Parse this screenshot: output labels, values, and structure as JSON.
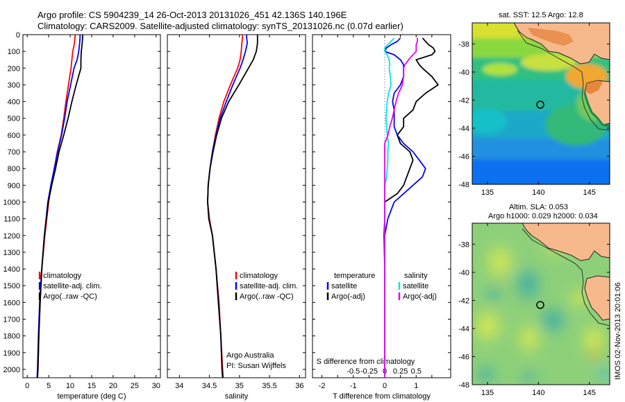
{
  "title": {
    "line1": "Argo profile: CS 5904239_14 26-Oct-2013 20131026_451 42.136S 140.196E",
    "line2": "Climatology: CARS2009. Satellite-adjusted climatology: synTS_20131026.nc (0.07d earlier)"
  },
  "side_label": "IMOS 02-Nov-2013 20:01:06",
  "colors": {
    "climatology": "#ff0000",
    "satellite": "#0000ff",
    "argo": "#000000",
    "sal_satellite": "#00e5e5",
    "sal_argo": "#e600e6"
  },
  "chart_data": [
    {
      "type": "line",
      "name": "temperature-profile",
      "xlabel": "temperature (deg C)",
      "ylabel": "",
      "xlim": [
        -1,
        31
      ],
      "ylim": [
        2050,
        0
      ],
      "xticks": [
        0,
        5,
        10,
        15,
        20,
        25,
        30
      ],
      "yticks": [
        0,
        100,
        200,
        300,
        400,
        500,
        600,
        700,
        800,
        900,
        1000,
        1100,
        1200,
        1300,
        1400,
        1500,
        1600,
        1700,
        1800,
        1900,
        2000
      ],
      "legend": [
        "climatology",
        "satellite-adj. clim.",
        "Argo(..raw -QC)"
      ],
      "legend_position": "lower-middle",
      "depth": [
        0,
        20,
        50,
        100,
        150,
        200,
        300,
        400,
        500,
        600,
        700,
        800,
        900,
        1000,
        1200,
        1400,
        1600,
        1800,
        2000,
        2050
      ],
      "series": [
        {
          "name": "climatology",
          "color": "#ff0000",
          "x": [
            11.2,
            11.1,
            11.0,
            10.6,
            10.4,
            10.2,
            9.6,
            9.0,
            8.5,
            7.9,
            7.0,
            6.3,
            5.6,
            5.0,
            4.1,
            3.4,
            3.0,
            2.7,
            2.5,
            2.4
          ]
        },
        {
          "name": "satellite-adj. clim.",
          "color": "#0000ff",
          "x": [
            12.3,
            12.3,
            12.2,
            12.0,
            11.6,
            10.9,
            10.1,
            9.3,
            8.7,
            8.0,
            7.1,
            6.3,
            5.5,
            4.8,
            4.0,
            3.4,
            2.9,
            2.6,
            2.4,
            2.3
          ]
        },
        {
          "name": "Argo(..raw -QC)",
          "color": "#000000",
          "x": [
            12.9,
            12.9,
            12.8,
            12.6,
            12.5,
            12.5,
            11.4,
            10.4,
            9.5,
            8.5,
            7.4,
            6.6,
            5.7,
            4.9,
            4.0,
            3.4,
            3.0,
            2.7,
            2.5,
            2.4
          ]
        }
      ]
    },
    {
      "type": "line",
      "name": "salinity-profile",
      "xlabel": "salinity",
      "xlim": [
        33.8,
        36.1
      ],
      "ylim": [
        2050,
        0
      ],
      "xticks": [
        34,
        34.5,
        35,
        35.5,
        36
      ],
      "legend": [
        "climatology",
        "satellite-adj. clim.",
        "Argo(..raw -QC)"
      ],
      "legend_position": "lower-right",
      "annotation": [
        "Argo Australia",
        "PI: Susan Wijffels"
      ],
      "depth": [
        0,
        20,
        50,
        100,
        150,
        200,
        300,
        400,
        500,
        600,
        700,
        800,
        900,
        1000,
        1100,
        1200,
        1400,
        1600,
        1800,
        2000,
        2050
      ],
      "series": [
        {
          "name": "climatology",
          "color": "#ff0000",
          "x": [
            35.05,
            35.05,
            35.04,
            35.03,
            35.01,
            34.97,
            34.85,
            34.74,
            34.66,
            34.6,
            34.55,
            34.51,
            34.48,
            34.47,
            34.5,
            34.55,
            34.61,
            34.66,
            34.69,
            34.72,
            34.73
          ]
        },
        {
          "name": "satellite-adj. clim.",
          "color": "#0000ff",
          "x": [
            35.12,
            35.12,
            35.13,
            35.1,
            35.06,
            35.01,
            34.89,
            34.78,
            34.68,
            34.61,
            34.55,
            34.51,
            34.48,
            34.47,
            34.49,
            34.55,
            34.61,
            34.65,
            34.69,
            34.71,
            34.72
          ]
        },
        {
          "name": "Argo(..raw -QC)",
          "color": "#000000",
          "x": [
            35.3,
            35.3,
            35.3,
            35.28,
            35.23,
            35.15,
            34.99,
            34.82,
            34.7,
            34.62,
            34.56,
            34.51,
            34.48,
            34.47,
            34.49,
            34.55,
            34.61,
            34.65,
            34.69,
            34.71,
            34.72
          ]
        }
      ]
    },
    {
      "type": "line",
      "name": "difference-profile",
      "xlabel": "T difference from climatology",
      "xlabel_top": "S difference from climatology",
      "xlim": [
        -2.3,
        2.1
      ],
      "ylim": [
        2050,
        0
      ],
      "xticks": [
        -2,
        -1.5,
        -1,
        -0.5,
        0,
        0.5,
        1,
        1.5
      ],
      "xtick_labels": [
        "-2",
        "",
        "-1",
        "",
        "0",
        "",
        "1",
        ""
      ],
      "s_ticks": [
        -0.5,
        -0.25,
        0,
        0.25,
        0.5
      ],
      "s_tick_labels": [
        "-0.5",
        "-0.25",
        "0",
        "0.25",
        "0.5"
      ],
      "s_scale": 2,
      "legend_headers": [
        "temperature",
        "salinity"
      ],
      "legend": [
        "satellite",
        "Argo(-adj)",
        "satellite",
        "Argo(-adj)"
      ],
      "legend_position": "lower-middle",
      "depth": [
        20,
        40,
        60,
        80,
        100,
        120,
        150,
        180,
        200,
        250,
        300,
        350,
        400,
        450,
        500,
        550,
        600,
        650,
        700,
        750,
        800,
        850,
        900,
        950,
        1000,
        1100,
        1200,
        1400,
        1600,
        1800,
        2000,
        2050
      ],
      "series": [
        {
          "name": "temperature satellite",
          "color": "#0000ff",
          "x": [
            0.5,
            0.4,
            0.2,
            0.05,
            0.0,
            0.3,
            0.5,
            0.6,
            0.6,
            0.6,
            0.5,
            0.3,
            0.25,
            0.3,
            0.3,
            0.3,
            0.4,
            0.6,
            0.9,
            1.1,
            1.3,
            1.2,
            0.9,
            0.6,
            0.3,
            0.1,
            0.0,
            0.0,
            0.0,
            0.0,
            0.0,
            0.0
          ]
        },
        {
          "name": "temperature Argo(-adj)",
          "color": "#000000",
          "x": [
            1.2,
            1.3,
            1.4,
            1.55,
            1.6,
            1.5,
            1.0,
            1.1,
            1.2,
            1.5,
            1.7,
            1.3,
            1.0,
            0.9,
            0.6,
            0.6,
            0.4,
            0.5,
            0.8,
            0.9,
            0.8,
            0.7,
            0.6,
            0.4,
            0.0,
            0.0,
            -0.02,
            0.0,
            0.0,
            0.0,
            0.0,
            0.0
          ]
        },
        {
          "name": "salinity satellite",
          "color": "#00e5e5",
          "x": [
            0.15,
            0.1,
            0.05,
            0.0,
            0.0,
            0.04,
            0.07,
            0.08,
            0.07,
            0.09,
            0.1,
            0.06,
            0.04,
            0.03,
            0.02,
            0.03,
            0.04,
            0.06,
            0.05,
            0.05,
            0.04,
            0.03,
            0.0,
            0.0,
            0.0,
            0.0,
            0.0,
            0.0,
            0.0,
            0.0,
            0.0,
            0.0
          ]
        },
        {
          "name": "salinity Argo(-adj)",
          "color": "#e600e6",
          "x": [
            0.52,
            0.52,
            0.5,
            0.5,
            0.5,
            0.45,
            0.38,
            0.32,
            0.3,
            0.3,
            0.28,
            0.22,
            0.18,
            0.15,
            0.12,
            0.08,
            0.05,
            0.0,
            0.0,
            0.0,
            0.0,
            0.0,
            0.0,
            0.0,
            0.0,
            0.0,
            0.0,
            0.0,
            0.0,
            0.0,
            0.0,
            0.0
          ]
        }
      ]
    },
    {
      "type": "heatmap",
      "name": "sst-map",
      "title": "sat. SST: 12.5  Argo: 12.8",
      "xlim": [
        133.5,
        147
      ],
      "ylim": [
        -48,
        -36.5
      ],
      "xticks": [
        135,
        140,
        145
      ],
      "yticks": [
        -38,
        -40,
        -42,
        -44,
        -46,
        -48
      ],
      "marker": {
        "lon": 140.196,
        "lat": -42.136
      }
    },
    {
      "type": "heatmap",
      "name": "sla-map",
      "title": "Altim. SLA: 0.053",
      "subtitle": "Argo h1000: 0.029 h2000: 0.034",
      "xlim": [
        133.5,
        147
      ],
      "ylim": [
        -48,
        -36.5
      ],
      "xticks": [
        135,
        140,
        145
      ],
      "yticks": [
        -38,
        -40,
        -42,
        -44,
        -46,
        -48
      ],
      "marker": {
        "lon": 140.196,
        "lat": -42.136
      }
    }
  ]
}
